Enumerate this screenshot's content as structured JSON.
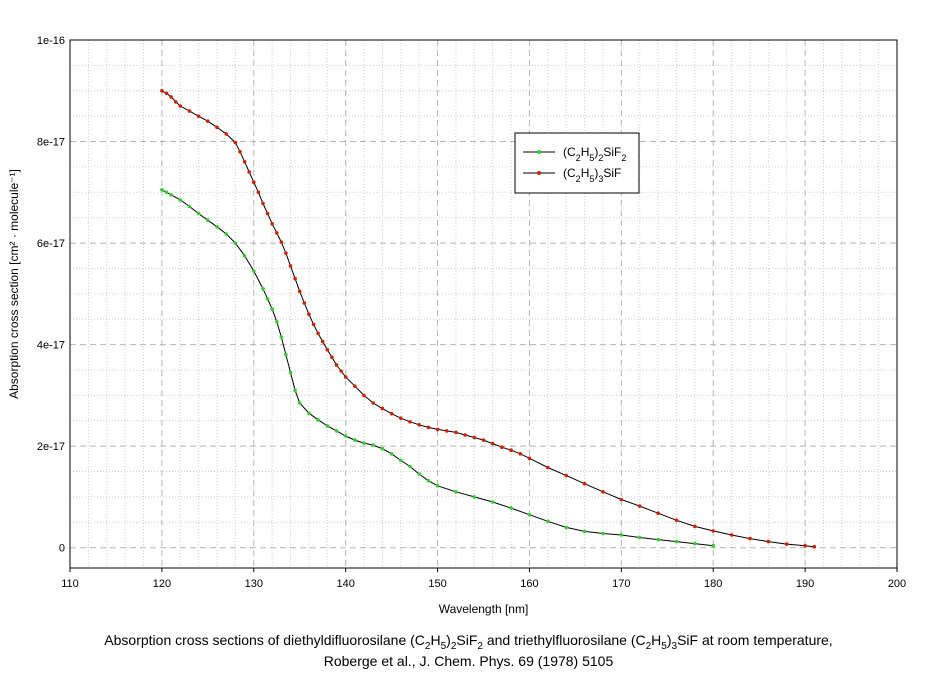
{
  "chart_data": {
    "type": "line",
    "xlabel": "Wavelength [nm]",
    "ylabel": "Absorption cross section [cm² · molecule⁻¹]",
    "xlim": [
      110,
      200
    ],
    "ylim": [
      -4e-18,
      1e-16
    ],
    "xticks": [
      110,
      120,
      130,
      140,
      150,
      160,
      170,
      180,
      190,
      200
    ],
    "yticks": [
      0,
      2e-17,
      4e-17,
      6e-17,
      8e-17,
      1e-16
    ],
    "ytick_labels": [
      "0",
      "2e-17",
      "4e-17",
      "6e-17",
      "8e-17",
      "1e-16"
    ],
    "grid": true,
    "legend_position": "upper-right-center",
    "series": [
      {
        "name": "(C2H5)2SiF2",
        "name_parts": [
          "(C",
          "2",
          "H",
          "5",
          ")",
          "2",
          "SiF",
          "2"
        ],
        "color": "#000000",
        "marker_color": "#33cc33",
        "x": [
          120.0,
          120.5,
          121.0,
          122.0,
          123.0,
          124.0,
          125.0,
          126.0,
          127.0,
          128.0,
          129.0,
          130.0,
          131.0,
          131.5,
          132.0,
          132.5,
          133.0,
          133.5,
          134.0,
          134.5,
          135.0,
          136.0,
          137.0,
          138.0,
          139.0,
          140.0,
          141.0,
          142.0,
          143.0,
          144.0,
          145.0,
          146.0,
          147.0,
          148.0,
          149.0,
          150.0,
          152.0,
          154.0,
          156.0,
          158.0,
          160.0,
          162.0,
          164.0,
          166.0,
          168.0,
          170.0,
          172.0,
          174.0,
          176.0,
          178.0,
          180.0
        ],
        "y": [
          7.05e-17,
          7e-17,
          6.95e-17,
          6.85e-17,
          6.72e-17,
          6.58e-17,
          6.45e-17,
          6.32e-17,
          6.18e-17,
          6e-17,
          5.75e-17,
          5.45e-17,
          5.1e-17,
          4.9e-17,
          4.7e-17,
          4.45e-17,
          4.15e-17,
          3.8e-17,
          3.45e-17,
          3.1e-17,
          2.85e-17,
          2.65e-17,
          2.52e-17,
          2.4e-17,
          2.3e-17,
          2.2e-17,
          2.12e-17,
          2.06e-17,
          2.02e-17,
          1.95e-17,
          1.85e-17,
          1.72e-17,
          1.6e-17,
          1.45e-17,
          1.32e-17,
          1.22e-17,
          1.1e-17,
          1e-17,
          9e-18,
          7.8e-18,
          6.5e-18,
          5.2e-18,
          4e-18,
          3.2e-18,
          2.8e-18,
          2.5e-18,
          2e-18,
          1.6e-18,
          1.2e-18,
          8e-19,
          4e-19
        ]
      },
      {
        "name": "(C2H5)3SiF",
        "name_parts": [
          "(C",
          "2",
          "H",
          "5",
          ")",
          "3",
          "SiF",
          ""
        ],
        "color": "#000000",
        "marker_color": "#cc2200",
        "x": [
          120.0,
          120.5,
          121.0,
          121.5,
          122.0,
          123.0,
          124.0,
          125.0,
          126.0,
          127.0,
          128.0,
          128.5,
          129.0,
          129.5,
          130.0,
          130.5,
          131.0,
          131.5,
          132.0,
          132.5,
          133.0,
          133.5,
          134.0,
          134.5,
          135.0,
          135.5,
          136.0,
          136.5,
          137.0,
          137.5,
          138.0,
          138.5,
          139.0,
          139.5,
          140.0,
          141.0,
          142.0,
          143.0,
          144.0,
          145.0,
          146.0,
          147.0,
          148.0,
          149.0,
          150.0,
          151.0,
          152.0,
          153.0,
          154.0,
          155.0,
          156.0,
          157.0,
          158.0,
          159.0,
          160.0,
          162.0,
          164.0,
          166.0,
          168.0,
          170.0,
          172.0,
          174.0,
          176.0,
          178.0,
          180.0,
          182.0,
          184.0,
          186.0,
          188.0,
          190.0,
          191.0
        ],
        "y": [
          9e-17,
          8.95e-17,
          8.88e-17,
          8.78e-17,
          8.7e-17,
          8.6e-17,
          8.5e-17,
          8.4e-17,
          8.28e-17,
          8.15e-17,
          7.98e-17,
          7.8e-17,
          7.6e-17,
          7.4e-17,
          7.2e-17,
          7e-17,
          6.78e-17,
          6.58e-17,
          6.38e-17,
          6.2e-17,
          6.02e-17,
          5.8e-17,
          5.55e-17,
          5.3e-17,
          5.05e-17,
          4.82e-17,
          4.6e-17,
          4.4e-17,
          4.22e-17,
          4.06e-17,
          3.9e-17,
          3.75e-17,
          3.6e-17,
          3.48e-17,
          3.36e-17,
          3.18e-17,
          3e-17,
          2.85e-17,
          2.74e-17,
          2.64e-17,
          2.55e-17,
          2.48e-17,
          2.42e-17,
          2.37e-17,
          2.33e-17,
          2.3e-17,
          2.27e-17,
          2.22e-17,
          2.17e-17,
          2.12e-17,
          2.05e-17,
          1.98e-17,
          1.92e-17,
          1.85e-17,
          1.76e-17,
          1.58e-17,
          1.42e-17,
          1.26e-17,
          1.1e-17,
          9.5e-18,
          8.2e-18,
          6.8e-18,
          5.4e-18,
          4.2e-18,
          3.3e-18,
          2.5e-18,
          1.8e-18,
          1.2e-18,
          7e-19,
          4e-19,
          2e-19
        ]
      }
    ]
  },
  "caption": {
    "line1_parts": [
      "Absorption cross sections of diethyldifluorosilane (C",
      "2",
      "H",
      "5",
      ")",
      "2",
      "SiF",
      "2",
      " and triethylfluorosilane (C",
      "2",
      "H",
      "5",
      ")",
      "3",
      "SiF at room temperature,"
    ],
    "line2": "Roberge et al., J. Chem. Phys. 69 (1978) 5105"
  }
}
